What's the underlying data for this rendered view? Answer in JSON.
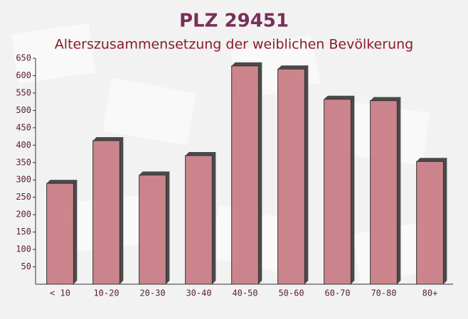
{
  "chart_data": {
    "type": "bar",
    "title": "PLZ 29451",
    "subtitle": "Alterszusammensetzung der weiblichen Bevölkerung",
    "categories": [
      "< 10",
      "10-20",
      "20-30",
      "30-40",
      "40-50",
      "50-60",
      "60-70",
      "70-80",
      "80+"
    ],
    "values": [
      290,
      413,
      314,
      370,
      628,
      619,
      532,
      528,
      353
    ],
    "color": "#c4717a",
    "ylim": [
      0,
      650
    ],
    "yticks": [
      50,
      100,
      150,
      200,
      250,
      300,
      350,
      400,
      450,
      500,
      550,
      600,
      650
    ],
    "grid": false
  }
}
